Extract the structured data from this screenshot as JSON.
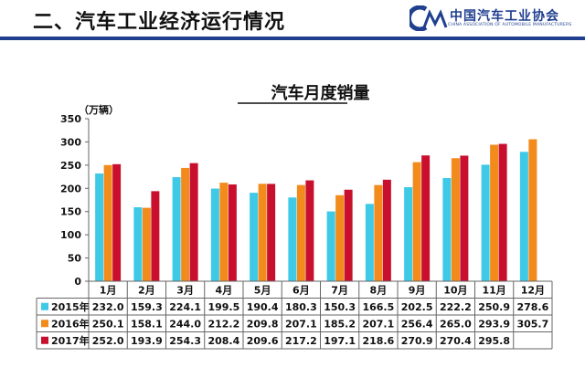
{
  "header": {
    "title": "二、汽车工业经济运行情况",
    "logo_cn": "中国汽车工业协会",
    "logo_en": "CHINA ASSOCIATION OF AUTOMOBILE MANUFACTURERS"
  },
  "colors": {
    "header_bar": "#1f3f8f",
    "s2015": "#3ec9e6",
    "s2016": "#f28a1c",
    "s2017": "#c8102e"
  },
  "chart_data": {
    "type": "bar",
    "title": "汽车月度销量",
    "ylabel": "（万辆）",
    "ylim": [
      0,
      350
    ],
    "yticks": [
      0,
      50,
      100,
      150,
      200,
      250,
      300,
      350
    ],
    "categories": [
      "1月",
      "2月",
      "3月",
      "4月",
      "5月",
      "6月",
      "7月",
      "8月",
      "9月",
      "10月",
      "11月",
      "12月"
    ],
    "series": [
      {
        "name": "2015年",
        "values": [
          232.0,
          159.3,
          224.1,
          199.5,
          190.4,
          180.3,
          150.3,
          166.5,
          202.5,
          222.2,
          250.9,
          278.6
        ]
      },
      {
        "name": "2016年",
        "values": [
          250.1,
          158.1,
          244.0,
          212.2,
          209.8,
          207.1,
          185.2,
          207.1,
          256.4,
          265.0,
          293.9,
          305.7
        ]
      },
      {
        "name": "2017年",
        "values": [
          252.0,
          193.9,
          254.3,
          208.4,
          209.6,
          217.2,
          197.1,
          218.6,
          270.9,
          270.4,
          295.8,
          null
        ]
      }
    ]
  }
}
